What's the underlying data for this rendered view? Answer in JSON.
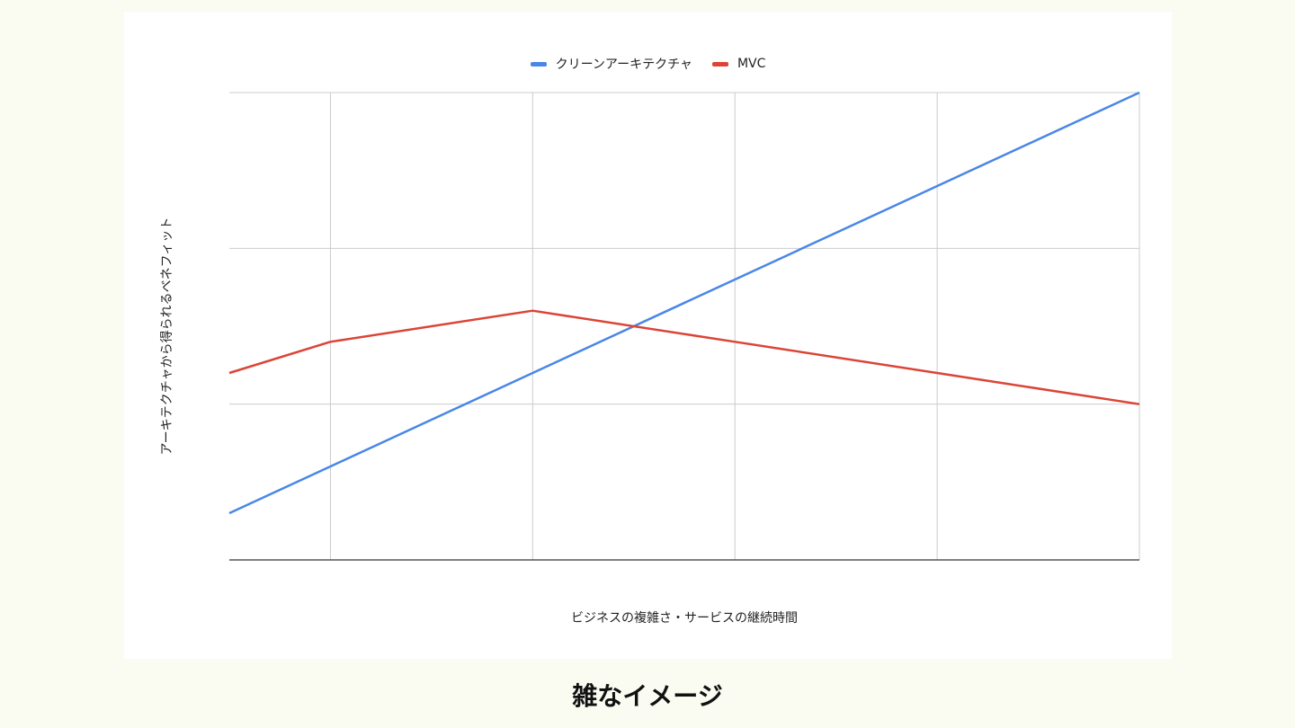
{
  "chart_data": {
    "type": "line",
    "title": "",
    "xlabel": "ビジネスの複雑さ・サービスの継続時間",
    "ylabel": "アーキテクチャから得られるベネフィット",
    "legend_position": "top-center",
    "grid": true,
    "x": [
      0,
      0.5,
      1.5,
      2.5,
      3.5,
      4.5
    ],
    "xlim": [
      0,
      4.5
    ],
    "ylim": [
      0,
      3
    ],
    "series": [
      {
        "name": "クリーンアーキテクチャ",
        "color": "#4a86e8",
        "values": [
          0.3,
          0.6,
          1.2,
          1.8,
          2.4,
          3.0
        ]
      },
      {
        "name": "MVC",
        "color": "#db4437",
        "values": [
          1.2,
          1.4,
          1.6,
          1.4,
          1.2,
          1.0
        ]
      }
    ]
  },
  "caption": "雑なイメージ"
}
